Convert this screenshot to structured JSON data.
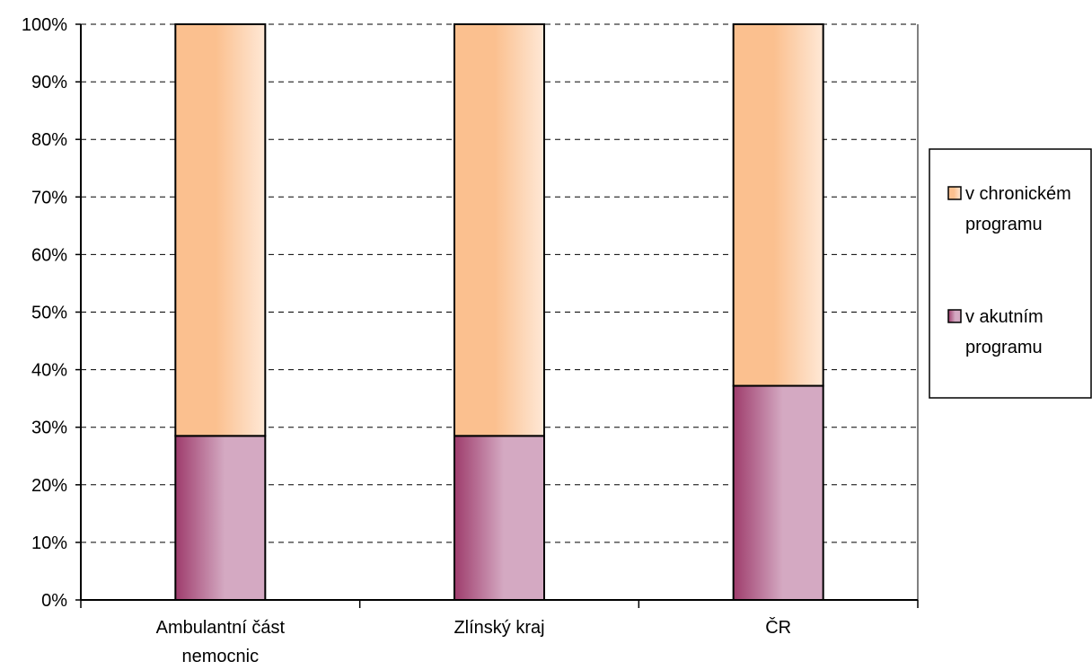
{
  "chart_data": {
    "type": "bar",
    "stacked": true,
    "percent": true,
    "categories": [
      [
        "Ambulantní část",
        "nemocnic"
      ],
      [
        "Zlínský kraj"
      ],
      [
        "ČR"
      ]
    ],
    "series": [
      {
        "name": "v akutním programu",
        "name_lines": [
          "v akutním",
          "programu"
        ],
        "values": [
          28.5,
          28.5,
          37.2
        ],
        "color": "#9e3c6c",
        "color_light": "#d4a9c2"
      },
      {
        "name": "v chronickém programu",
        "name_lines": [
          "v chronickém",
          "programu"
        ],
        "values": [
          71.5,
          71.5,
          62.8
        ],
        "color": "#fbc08f",
        "color_light": "#fee8d6"
      }
    ],
    "y_ticks": [
      "0%",
      "10%",
      "20%",
      "30%",
      "40%",
      "50%",
      "60%",
      "70%",
      "80%",
      "90%",
      "100%"
    ],
    "ylim": [
      0,
      100
    ],
    "grid": true,
    "legend_position": "right"
  }
}
